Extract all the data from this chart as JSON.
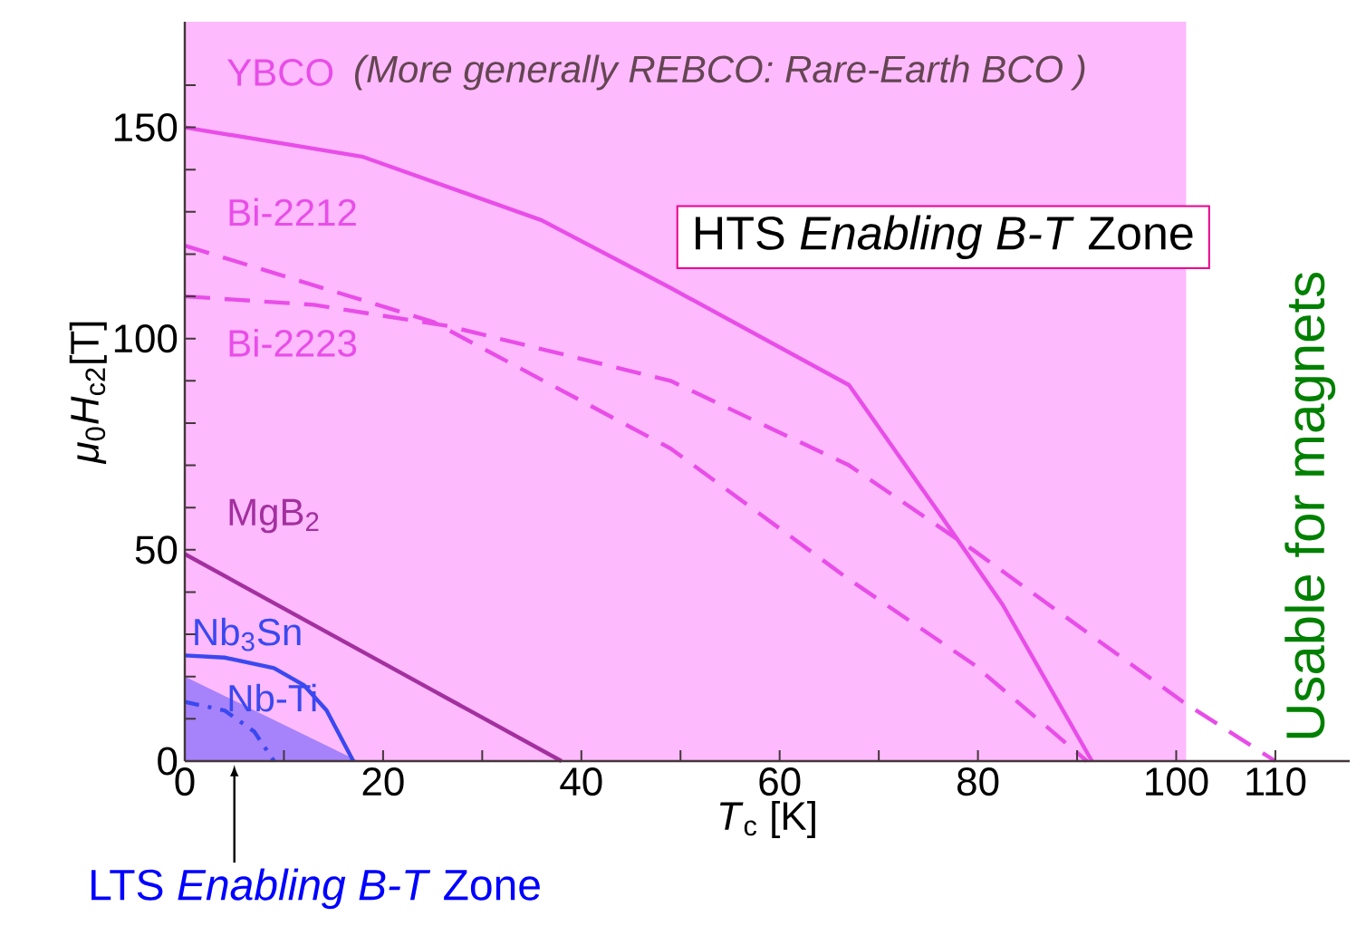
{
  "chart_data": {
    "type": "line",
    "xlabel": "*T*$_{c}$ [K]",
    "ylabel": "*μ*$_{0}$*H*$_{c2}$[T]",
    "xlim": [
      0,
      117.5
    ],
    "ylim": [
      0,
      175
    ],
    "xticks": [
      0,
      {
        "value": 10,
        "label": null
      },
      20,
      {
        "value": 30,
        "label": null
      },
      40,
      {
        "value": 50,
        "label": null
      },
      60,
      {
        "value": 70,
        "label": null
      },
      80,
      {
        "value": 90,
        "label": null
      },
      100,
      110
    ],
    "yticks": [
      0,
      {
        "value": 10,
        "label": null
      },
      {
        "value": 20,
        "label": null
      },
      {
        "value": 30,
        "label": null
      },
      {
        "value": 40,
        "label": null
      },
      50,
      {
        "value": 60,
        "label": null
      },
      {
        "value": 70,
        "label": null
      },
      {
        "value": 80,
        "label": null
      },
      {
        "value": 90,
        "label": null
      },
      100,
      {
        "value": 110,
        "label": null
      },
      {
        "value": 120,
        "label": null
      },
      {
        "value": 130,
        "label": null
      },
      {
        "value": 140,
        "label": null
      },
      150,
      {
        "value": 160,
        "label": null
      }
    ],
    "series": [
      {
        "type": "area",
        "color": "#a682fb",
        "x": [
          0,
          17.5
        ],
        "values": [
          20,
          0
        ]
      },
      {
        "name": "YBCO",
        "color": "#e84de8",
        "line_style": "solid",
        "x": [
          0,
          18,
          36,
          49,
          67,
          76,
          82.5,
          91.5
        ],
        "values": [
          150,
          143,
          128,
          112,
          89,
          59,
          37,
          0
        ]
      },
      {
        "name": "Bi-2212",
        "color": "#e84de8",
        "line_style": "dashed",
        "x": [
          0,
          25,
          49,
          67,
          79.5,
          91
        ],
        "values": [
          122,
          104,
          74,
          43,
          23,
          0
        ]
      },
      {
        "name": "Bi-2223",
        "color": "#e84de8",
        "line_style": "dashed",
        "x": [
          0,
          13,
          26.5,
          49,
          67,
          79.5,
          100.7,
          110
        ],
        "values": [
          110,
          108,
          103,
          90,
          70,
          50,
          14,
          0
        ]
      },
      {
        "name": "MgB$_{2}$",
        "color": "#a3309f",
        "line_style": "solid",
        "x": [
          0,
          38
        ],
        "values": [
          49,
          0
        ]
      },
      {
        "name": "Nb$_{3}$Sn",
        "color": "#3a48f0",
        "line_style": "solid",
        "x": [
          0,
          4,
          9,
          12,
          14.3,
          17
        ],
        "values": [
          25,
          24.5,
          22,
          18,
          12,
          0
        ]
      },
      {
        "name": "Nb-Ti",
        "color": "#3a48f0",
        "line_style": "dashdot",
        "x": [
          0,
          4,
          7,
          9
        ],
        "values": [
          14,
          12,
          7,
          0
        ]
      }
    ],
    "bands": [
      {
        "axis": "x",
        "from": 0,
        "to": 101,
        "label": "HTS *Enabling B-T* Zone",
        "color": "#fdbafd"
      }
    ],
    "annotations": [
      "(More generally REBCO: Rare-Earth BCO )",
      {
        "text": "LTS *Enabling B-T* Zone",
        "x": 5,
        "y": 0
      },
      "Usable for magnets"
    ]
  }
}
